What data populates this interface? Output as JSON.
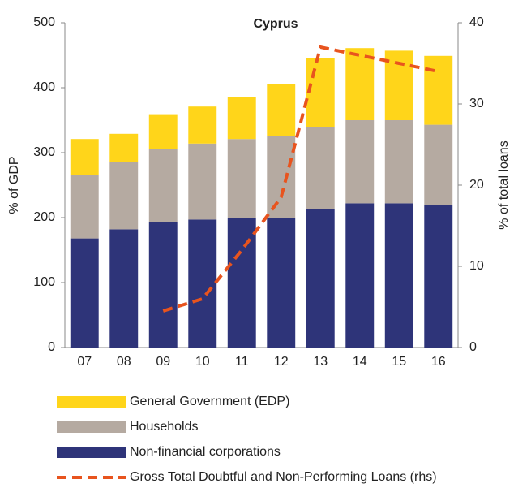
{
  "chart_data": {
    "type": "bar",
    "stacked": true,
    "title": "Cyprus",
    "ylabel": "% of GDP",
    "y2label": "% of total loans",
    "categories": [
      "07",
      "08",
      "09",
      "10",
      "11",
      "12",
      "13",
      "14",
      "15",
      "16"
    ],
    "ylim": [
      0,
      500
    ],
    "yticks": [
      0,
      100,
      200,
      300,
      400,
      500
    ],
    "y2lim": [
      0,
      40
    ],
    "y2ticks": [
      0,
      10,
      20,
      30,
      40
    ],
    "series": [
      {
        "name": "Non-financial corporations",
        "color": "#2e3479",
        "values": [
          168,
          182,
          193,
          197,
          200,
          200,
          213,
          222,
          222,
          220
        ]
      },
      {
        "name": "Households",
        "color": "#b5aaa1",
        "values": [
          98,
          103,
          113,
          117,
          121,
          126,
          127,
          128,
          128,
          123
        ]
      },
      {
        "name": "General Government (EDP)",
        "color": "#ffd51a",
        "values": [
          55,
          44,
          52,
          57,
          65,
          79,
          105,
          111,
          107,
          106
        ]
      },
      {
        "name": "Gross Total Doubtful and Non-Performing Loans (rhs)",
        "color": "#e8541e",
        "type": "line",
        "axis": "y2",
        "values": [
          null,
          null,
          4.5,
          6,
          12,
          18.5,
          37,
          36,
          35,
          34
        ]
      }
    ]
  }
}
